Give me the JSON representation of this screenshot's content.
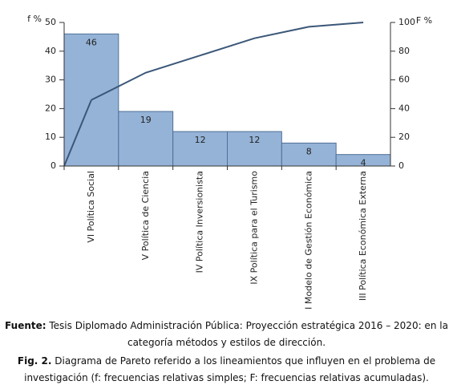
{
  "chart_data": {
    "type": "pareto",
    "y_label": "f %",
    "y2_label": "F %",
    "categories": [
      "VI Política Social",
      "V Política de Ciencia",
      "IV Política Inversionista",
      "IX Política para el Turismo",
      "I Modelo de Gestión Económica",
      "III Política Económica Externa"
    ],
    "series": [
      {
        "name": "f",
        "type": "bar",
        "color": "#95b3d7",
        "values": [
          46,
          19,
          12,
          12,
          8,
          4
        ]
      },
      {
        "name": "F",
        "type": "line",
        "axis": "y2",
        "color": "#3b5778",
        "values": [
          46,
          65,
          77,
          89,
          97,
          100
        ]
      }
    ],
    "ylim": [
      0,
      50
    ],
    "yticks": [
      0,
      10,
      20,
      30,
      40,
      50
    ],
    "y2lim": [
      0,
      100
    ],
    "y2ticks": [
      0,
      20,
      40,
      60,
      80,
      100
    ]
  },
  "caption": {
    "source_label": "Fuente:",
    "source_text": "Tesis Diplomado Administración Pública: Proyección estratégica 2016 – 2020: en la categoría métodos y estilos de dirección.",
    "figure_label": "Fig. 2.",
    "figure_text": "Diagrama de Pareto referido a los lineamientos que influyen en el problema de investigación (f: frecuencias relativas simples; F: frecuencias relativas acumuladas)."
  }
}
